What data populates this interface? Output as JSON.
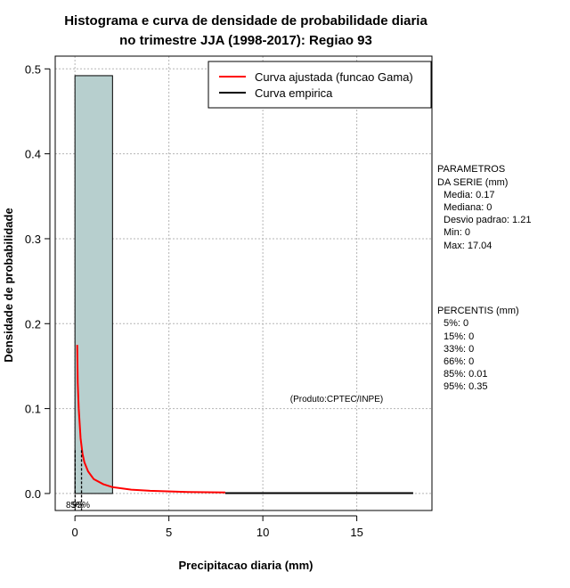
{
  "chart_data": {
    "type": "bar",
    "title_lines": [
      "Histograma e curva de densidade de probabilidade diaria",
      "no trimestre JJA (1998-2017): Regiao 93"
    ],
    "xlabel": "Precipitacao diaria (mm)",
    "ylabel": "Densidade de probabilidade",
    "xlim": [
      -1.05,
      19.0
    ],
    "ylim": [
      -0.02,
      0.515
    ],
    "x_ticks": [
      0,
      5,
      10,
      15
    ],
    "y_ticks": [
      0.0,
      0.1,
      0.2,
      0.3,
      0.4,
      0.5
    ],
    "x_tick_labels": [
      "0",
      "5",
      "10",
      "15"
    ],
    "y_tick_labels": [
      "0.0",
      "0.1",
      "0.2",
      "0.3",
      "0.4",
      "0.5"
    ],
    "grid": true,
    "histogram": {
      "bins": [
        {
          "start": 0,
          "end": 2,
          "density": 0.492
        }
      ],
      "fill": "#b7cfce"
    },
    "series": [
      {
        "name": "Curva ajustada (funcao Gama)",
        "color": "#ff0000",
        "points": [
          [
            0.12,
            0.175
          ],
          [
            0.15,
            0.13
          ],
          [
            0.2,
            0.1
          ],
          [
            0.3,
            0.065
          ],
          [
            0.4,
            0.047
          ],
          [
            0.5,
            0.037
          ],
          [
            0.7,
            0.026
          ],
          [
            1.0,
            0.017
          ],
          [
            1.5,
            0.011
          ],
          [
            2.0,
            0.0075
          ],
          [
            3.0,
            0.0045
          ],
          [
            4.0,
            0.0032
          ],
          [
            6.0,
            0.0018
          ],
          [
            8.0,
            0.0012
          ]
        ]
      },
      {
        "name": "Curva empirica",
        "color": "#000000",
        "points": [
          [
            8.0,
            0.0005
          ],
          [
            18.0,
            0.0005
          ]
        ]
      }
    ],
    "percentile_markers": [
      {
        "x": 0.01,
        "y": 0.051
      },
      {
        "x": 0.35,
        "y": 0.051
      }
    ],
    "percentile_marker_label": "85%",
    "percentile_marker_label_overlap": "95%",
    "legend_position": "top-right",
    "annotation": "(Produto:CPTEC/INPE)"
  },
  "side_panel": {
    "parameters_title": [
      "PARAMETROS",
      "DA SERIE (mm)"
    ],
    "parameters": [
      "Media: 0.17",
      "Mediana: 0",
      "Desvio padrao: 1.21",
      "Min: 0",
      "Max: 17.04"
    ],
    "percentiles_title": "PERCENTIS (mm)",
    "percentiles": [
      "5%: 0",
      "15%: 0",
      "33%: 0",
      "66%: 0",
      "85%: 0.01",
      "95%: 0.35"
    ]
  }
}
